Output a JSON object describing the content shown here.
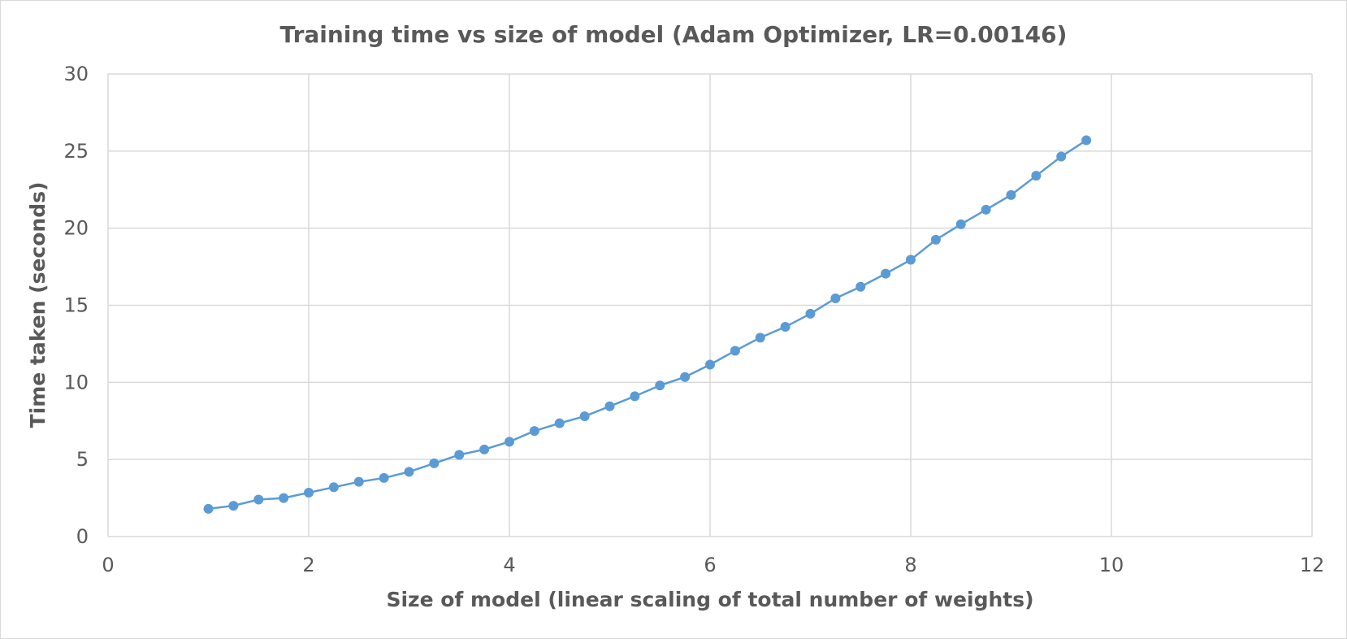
{
  "chart_data": {
    "type": "line",
    "title": "Training time vs size of model (Adam Optimizer, LR=0.00146)",
    "xlabel": "Size of model (linear scaling of total number of weights)",
    "ylabel": "Time taken (seconds)",
    "xlim": [
      0,
      12
    ],
    "ylim": [
      0,
      30
    ],
    "xticks": [
      "0",
      "2",
      "4",
      "6",
      "8",
      "10",
      "12"
    ],
    "yticks": [
      "0",
      "5",
      "10",
      "15",
      "20",
      "25",
      "30"
    ],
    "grid": true,
    "legend": "none",
    "series": [
      {
        "color": "#5b9bd5",
        "marker": "circle",
        "x": [
          1,
          1.25,
          1.5,
          1.75,
          2,
          2.25,
          2.5,
          2.75,
          3,
          3.25,
          3.5,
          3.75,
          4,
          4.25,
          4.5,
          4.75,
          5,
          5.25,
          5.5,
          5.75,
          6,
          6.25,
          6.5,
          6.75,
          7,
          7.25,
          7.5,
          7.75,
          8,
          8.25,
          8.5,
          8.75,
          9,
          9.25,
          9.5,
          9.75
        ],
        "y": [
          1.8,
          2.0,
          2.4,
          2.5,
          2.85,
          3.2,
          3.55,
          3.8,
          4.2,
          4.75,
          5.3,
          5.65,
          6.15,
          6.85,
          7.35,
          7.8,
          8.45,
          9.1,
          9.8,
          10.35,
          11.15,
          12.05,
          12.9,
          13.6,
          14.45,
          15.45,
          16.2,
          17.05,
          17.95,
          19.25,
          20.25,
          21.2,
          22.15,
          23.4,
          24.65,
          25.7
        ]
      }
    ]
  }
}
